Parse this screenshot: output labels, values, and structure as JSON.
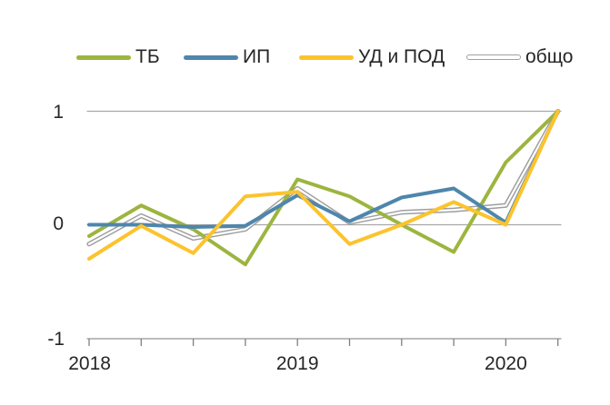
{
  "chart_data": {
    "type": "line",
    "title": "",
    "x_categories": [
      "2018 Q1",
      "2018 Q2",
      "2018 Q3",
      "2018 Q4",
      "2019 Q1",
      "2019 Q2",
      "2019 Q3",
      "2019 Q4",
      "2020 Q1",
      "2020 Q2"
    ],
    "x_year_labels": [
      {
        "text": "2018",
        "index": 0
      },
      {
        "text": "2019",
        "index": 4
      },
      {
        "text": "2020",
        "index": 8
      }
    ],
    "ylim": [
      -1,
      1
    ],
    "yticks": [
      1,
      0,
      -1
    ],
    "ytick_labels": [
      "1",
      "0",
      "-1"
    ],
    "gridlines_at": [
      1,
      0
    ],
    "legend_position": "top",
    "series": [
      {
        "name": "ТБ",
        "color": "#9CB53F",
        "style": "solid",
        "values": [
          -0.1,
          0.17,
          -0.04,
          -0.35,
          0.4,
          0.25,
          0.0,
          -0.24,
          0.55,
          1.0
        ]
      },
      {
        "name": "ИП",
        "color": "#4E86AC",
        "style": "solid",
        "values": [
          0.0,
          0.0,
          -0.02,
          -0.01,
          0.26,
          0.03,
          0.24,
          0.32,
          0.02,
          1.0
        ]
      },
      {
        "name": "УД и ПОД",
        "color": "#FDC32D",
        "style": "solid",
        "values": [
          -0.3,
          -0.01,
          -0.25,
          0.25,
          0.29,
          -0.17,
          0.0,
          0.2,
          0.0,
          1.0
        ]
      },
      {
        "name": "общо",
        "color": "#9E9E9E",
        "style": "outlined",
        "values": [
          -0.17,
          0.08,
          -0.12,
          -0.04,
          0.32,
          0.02,
          0.11,
          0.13,
          0.17,
          1.0
        ]
      }
    ],
    "colors": {
      "gridline": "#A9A9A9",
      "axis": "#A6A6A6",
      "tick": "#7F7F7F",
      "text": "#262626"
    }
  }
}
